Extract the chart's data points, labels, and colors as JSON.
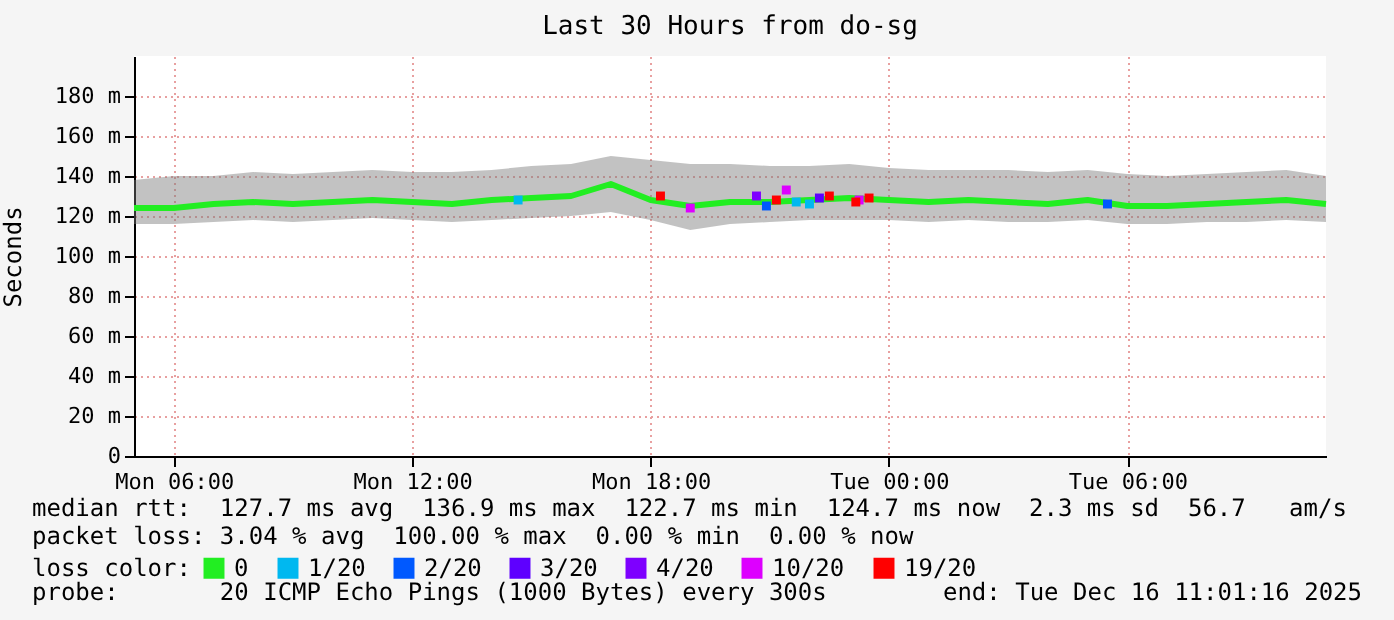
{
  "chart_data": {
    "type": "line",
    "title": "Last 30 Hours from do-sg",
    "ylabel": "Seconds",
    "legend_title": "loss color:",
    "legend": "bottom",
    "grid": true,
    "line_style": "solid",
    "xlim": [
      "2025-12-15T05:00",
      "2025-12-16T11:00"
    ],
    "xticks": [
      {
        "value": "2025-12-15T06:00",
        "label": "Mon 06:00"
      },
      {
        "value": "2025-12-15T12:00",
        "label": "Mon 12:00"
      },
      {
        "value": "2025-12-15T18:00",
        "label": "Mon 18:00"
      },
      {
        "value": "2025-12-16T00:00",
        "label": "Tue 00:00"
      },
      {
        "value": "2025-12-16T06:00",
        "label": "Tue 06:00"
      }
    ],
    "ylim": [
      0,
      200
    ],
    "yticks": [
      0,
      {
        "value": 20,
        "label": "20 m"
      },
      {
        "value": 40,
        "label": "40 m"
      },
      {
        "value": 60,
        "label": "60 m"
      },
      {
        "value": 80,
        "label": "80 m"
      },
      {
        "value": 100,
        "label": "100 m"
      },
      {
        "value": 120,
        "label": "120 m"
      },
      {
        "value": 140,
        "label": "140 m"
      },
      {
        "value": 160,
        "label": "160 m"
      },
      {
        "value": 180,
        "label": "180 m"
      }
    ],
    "x": [
      "2025-12-15T05:00",
      "2025-12-15T06:00",
      "2025-12-15T07:00",
      "2025-12-15T08:00",
      "2025-12-15T09:00",
      "2025-12-15T10:00",
      "2025-12-15T11:00",
      "2025-12-15T12:00",
      "2025-12-15T13:00",
      "2025-12-15T14:00",
      "2025-12-15T15:00",
      "2025-12-15T16:00",
      "2025-12-15T17:00",
      "2025-12-15T18:00",
      "2025-12-15T19:00",
      "2025-12-15T20:00",
      "2025-12-15T21:00",
      "2025-12-15T22:00",
      "2025-12-15T23:00",
      "2025-12-16T00:00",
      "2025-12-16T01:00",
      "2025-12-16T02:00",
      "2025-12-16T03:00",
      "2025-12-16T04:00",
      "2025-12-16T05:00",
      "2025-12-16T06:00",
      "2025-12-16T07:00",
      "2025-12-16T08:00",
      "2025-12-16T09:00",
      "2025-12-16T10:00",
      "2025-12-16T11:00"
    ],
    "series": [
      {
        "name": "0",
        "color": "#22ee22",
        "values": [
          124,
          124,
          126,
          127,
          126,
          127,
          128,
          127,
          126,
          128,
          129,
          130,
          136,
          128,
          125,
          127,
          127,
          128,
          129,
          128,
          127,
          128,
          127,
          126,
          128,
          125,
          125,
          126,
          127,
          128,
          126
        ],
        "lower": [
          116,
          116,
          117,
          118,
          117,
          118,
          119,
          118,
          117,
          118,
          119,
          120,
          122,
          118,
          113,
          116,
          117,
          118,
          118,
          118,
          117,
          118,
          117,
          117,
          118,
          116,
          116,
          117,
          117,
          118,
          117
        ],
        "upper": [
          138,
          140,
          140,
          142,
          141,
          142,
          143,
          142,
          142,
          143,
          145,
          146,
          150,
          148,
          146,
          146,
          145,
          145,
          146,
          144,
          143,
          143,
          143,
          142,
          143,
          141,
          140,
          141,
          142,
          143,
          140
        ]
      },
      {
        "name": "1/20",
        "type": "scatter",
        "color": "#00b8f0",
        "x": [
          "2025-12-15T14:40",
          "2025-12-15T21:40",
          "2025-12-15T22:00"
        ],
        "values": [
          128,
          127,
          126
        ]
      },
      {
        "name": "2/20",
        "type": "scatter",
        "color": "#0059ff",
        "x": [
          "2025-12-15T20:55",
          "2025-12-16T05:30"
        ],
        "values": [
          125,
          126
        ]
      },
      {
        "name": "3/20",
        "type": "scatter",
        "color": "#5e00ff",
        "x": [
          "2025-12-15T22:15"
        ],
        "values": [
          129
        ]
      },
      {
        "name": "4/20",
        "type": "scatter",
        "color": "#7e00ff",
        "x": [
          "2025-12-15T20:40"
        ],
        "values": [
          130
        ]
      },
      {
        "name": "10/20",
        "type": "scatter",
        "color": "#dd00ff",
        "x": [
          "2025-12-15T19:00",
          "2025-12-15T21:25",
          "2025-12-15T23:15"
        ],
        "values": [
          124,
          133,
          128
        ]
      },
      {
        "name": "19/20",
        "type": "scatter",
        "color": "#ff0000",
        "x": [
          "2025-12-15T18:15",
          "2025-12-15T21:10",
          "2025-12-15T22:30",
          "2025-12-15T23:10",
          "2025-12-15T23:30"
        ],
        "values": [
          130,
          128,
          130,
          127,
          129
        ]
      }
    ],
    "annotations": [
      "median rtt:  127.7 ms avg  136.9 ms max  122.7 ms min  124.7 ms now  2.3 ms sd  56.7   am/s",
      "packet loss: 3.04 % avg  100.00 % max  0.00 % min  0.00 % now",
      "probe:       20 ICMP Echo Pings (1000 Bytes) every 300s",
      "end: Tue Dec 16 11:01:16 2025"
    ]
  }
}
